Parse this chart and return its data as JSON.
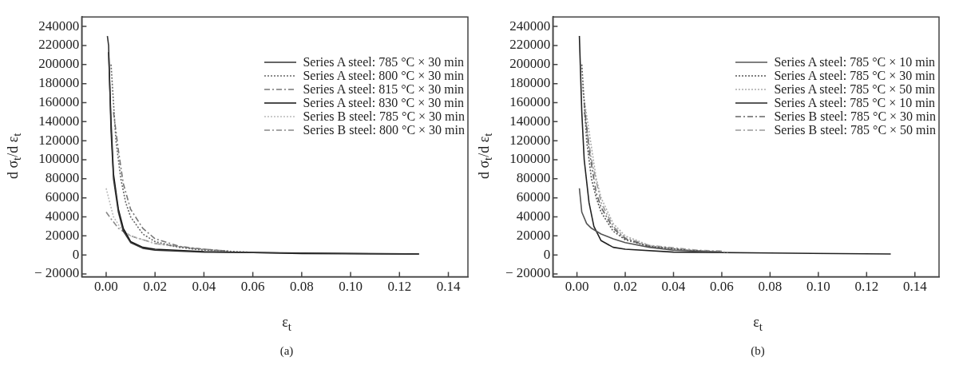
{
  "chart_data": [
    {
      "type": "line",
      "xlabel": "ε$_{t}$",
      "ylabel": "d σ$_{t}$/d ε$_{t}$",
      "annotations": [
        "(a)"
      ],
      "legend": "top right",
      "grid": false,
      "marker": "none",
      "xlim": [
        -0.01,
        0.148
      ],
      "ylim": [
        -23000,
        250000
      ],
      "xticks": [
        {
          "value": 0,
          "label": "0.00"
        },
        {
          "value": 0.02,
          "label": "0.02"
        },
        {
          "value": 0.04,
          "label": "0.04"
        },
        {
          "value": 0.06,
          "label": "0.06"
        },
        {
          "value": 0.08,
          "label": "0.08"
        },
        {
          "value": 0.1,
          "label": "0.10"
        },
        {
          "value": 0.12,
          "label": "0.12"
        },
        {
          "value": 0.14,
          "label": "0.14"
        }
      ],
      "yticks": [
        {
          "value": -20000,
          "label": "− 20000"
        },
        0,
        20000,
        40000,
        60000,
        80000,
        100000,
        120000,
        140000,
        160000,
        180000,
        200000,
        220000,
        240000
      ],
      "series": [
        {
          "name": "Series A steel: 785 °C × 30 min",
          "color": "#333333",
          "line_style": "solid",
          "x": [
            0.0005,
            0.001,
            0.002,
            0.003,
            0.005,
            0.007,
            0.01,
            0.015,
            0.02,
            0.04,
            0.08,
            0.128
          ],
          "values": [
            230000,
            220000,
            130000,
            80000,
            45000,
            25000,
            13000,
            7000,
            5000,
            3000,
            2000,
            1000
          ]
        },
        {
          "name": "Series A steel: 800 °C × 30 min",
          "color": "#666666",
          "line_style": "dotted",
          "x": [
            0.002,
            0.004,
            0.006,
            0.008,
            0.01,
            0.015,
            0.02,
            0.03,
            0.04,
            0.058
          ],
          "values": [
            200000,
            120000,
            80000,
            55000,
            40000,
            22000,
            14000,
            8000,
            5000,
            3000
          ]
        },
        {
          "name": "Series A steel: 815 °C × 30 min",
          "color": "#777777",
          "line_style": "dashed",
          "x": [
            0.003,
            0.005,
            0.007,
            0.01,
            0.015,
            0.02,
            0.03,
            0.04,
            0.05
          ],
          "values": [
            150000,
            110000,
            75000,
            48000,
            28000,
            17000,
            9000,
            6000,
            4000
          ]
        },
        {
          "name": "Series A steel: 830 °C × 30 min",
          "color": "#111111",
          "line_style": "solid",
          "x": [
            0.001,
            0.002,
            0.003,
            0.005,
            0.007,
            0.01,
            0.015,
            0.02,
            0.04,
            0.08,
            0.128
          ],
          "values": [
            213000,
            140000,
            85000,
            48000,
            28000,
            14000,
            8000,
            6000,
            3500,
            1500,
            1000
          ]
        },
        {
          "name": "Series B steel: 785 °C × 30 min",
          "color": "#bbbbbb",
          "line_style": "dotted",
          "x": [
            0.0,
            0.001,
            0.003,
            0.006,
            0.01,
            0.02,
            0.03,
            0.04
          ],
          "values": [
            70000,
            60000,
            40000,
            28000,
            20000,
            12000,
            8000,
            5000
          ]
        },
        {
          "name": "Series B steel: 800 °C × 30 min",
          "color": "#888888",
          "line_style": "dashed",
          "x": [
            0.0,
            0.002,
            0.005,
            0.01,
            0.02,
            0.035,
            0.05
          ],
          "values": [
            45000,
            38000,
            28000,
            20000,
            12000,
            7000,
            4000
          ]
        }
      ]
    },
    {
      "type": "line",
      "xlabel": "ε$_{t}$",
      "ylabel": "d σ$_{t}$/d ε$_{t}$",
      "annotations": [
        "(b)"
      ],
      "legend": "top right",
      "grid": false,
      "marker": "none",
      "xlim": [
        -0.01,
        0.15
      ],
      "ylim": [
        -23000,
        250000
      ],
      "xticks": [
        {
          "value": 0,
          "label": "0.00"
        },
        {
          "value": 0.02,
          "label": "0.02"
        },
        {
          "value": 0.04,
          "label": "0.04"
        },
        {
          "value": 0.06,
          "label": "0.06"
        },
        {
          "value": 0.08,
          "label": "0.08"
        },
        {
          "value": 0.1,
          "label": "0.10"
        },
        {
          "value": 0.12,
          "label": "0.12"
        },
        {
          "value": 0.14,
          "label": "0.14"
        }
      ],
      "yticks": [
        {
          "value": -20000,
          "label": "− 20000"
        },
        0,
        20000,
        40000,
        60000,
        80000,
        100000,
        120000,
        140000,
        160000,
        180000,
        200000,
        220000,
        240000
      ],
      "series": [
        {
          "name": "Series A steel: 785 °C × 10 min",
          "color": "#555555",
          "line_style": "solid",
          "x": [
            0.001,
            0.002,
            0.004,
            0.006,
            0.01,
            0.015,
            0.02,
            0.03,
            0.04,
            0.06
          ],
          "values": [
            70000,
            45000,
            33000,
            28000,
            22000,
            17000,
            13000,
            8000,
            5000,
            3000
          ]
        },
        {
          "name": "Series A steel: 785 °C × 30 min",
          "color": "#555555",
          "line_style": "dotted",
          "x": [
            0.002,
            0.004,
            0.006,
            0.008,
            0.01,
            0.015,
            0.02,
            0.03,
            0.045,
            0.06
          ],
          "values": [
            200000,
            120000,
            80000,
            60000,
            45000,
            25000,
            16000,
            9000,
            5000,
            3000
          ]
        },
        {
          "name": "Series A steel: 785 °C × 50 min",
          "color": "#aaaaaa",
          "line_style": "dotted",
          "x": [
            0.002,
            0.005,
            0.008,
            0.01,
            0.015,
            0.02,
            0.03,
            0.045,
            0.063
          ],
          "values": [
            180000,
            130000,
            80000,
            60000,
            33000,
            20000,
            10000,
            5000,
            3000
          ]
        },
        {
          "name": "Series A steel: 785 °C × 10 min",
          "color": "#222222",
          "line_style": "solid",
          "x": [
            0.001,
            0.002,
            0.003,
            0.005,
            0.007,
            0.01,
            0.015,
            0.02,
            0.04,
            0.08,
            0.13
          ],
          "values": [
            230000,
            150000,
            100000,
            55000,
            30000,
            15000,
            8000,
            6000,
            3000,
            2000,
            1000
          ]
        },
        {
          "name": "Series B steel: 785 °C × 30 min",
          "color": "#666666",
          "line_style": "dashed",
          "x": [
            0.003,
            0.005,
            0.008,
            0.01,
            0.015,
            0.02,
            0.03,
            0.05
          ],
          "values": [
            160000,
            110000,
            65000,
            50000,
            28000,
            17000,
            9000,
            4000
          ]
        },
        {
          "name": "Series B steel: 785 °C × 50 min",
          "color": "#999999",
          "line_style": "dashed",
          "x": [
            0.003,
            0.006,
            0.01,
            0.015,
            0.02,
            0.03,
            0.05,
            0.06
          ],
          "values": [
            150000,
            100000,
            55000,
            30000,
            18000,
            10000,
            5000,
            4000
          ]
        }
      ]
    }
  ]
}
